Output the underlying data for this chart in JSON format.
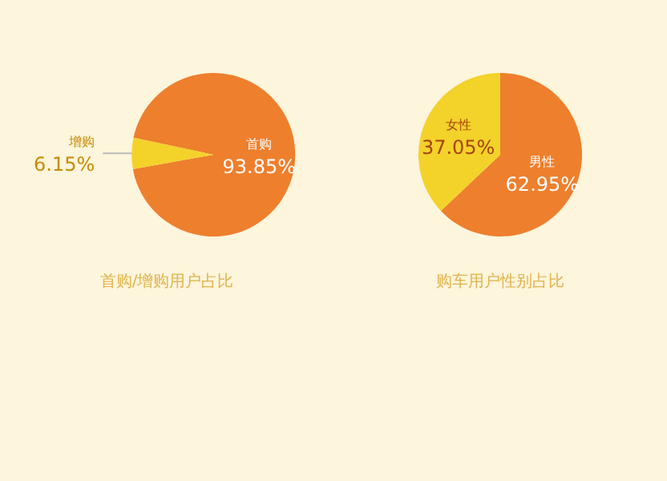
{
  "chart_data": [
    {
      "type": "pie",
      "title": "首购/增购用户占比",
      "categories": [
        "首购",
        "增购"
      ],
      "values": [
        93.85,
        6.15
      ],
      "colors": [
        "#ee7f2d",
        "#f3d22a"
      ],
      "value_labels": [
        "93.85%",
        "6.15%"
      ]
    },
    {
      "type": "pie",
      "title": "购车用户性别占比",
      "categories": [
        "男性",
        "女性"
      ],
      "values": [
        62.95,
        37.05
      ],
      "colors": [
        "#ee7f2d",
        "#f3d22a"
      ],
      "value_labels": [
        "62.95%",
        "37.05%"
      ]
    }
  ]
}
